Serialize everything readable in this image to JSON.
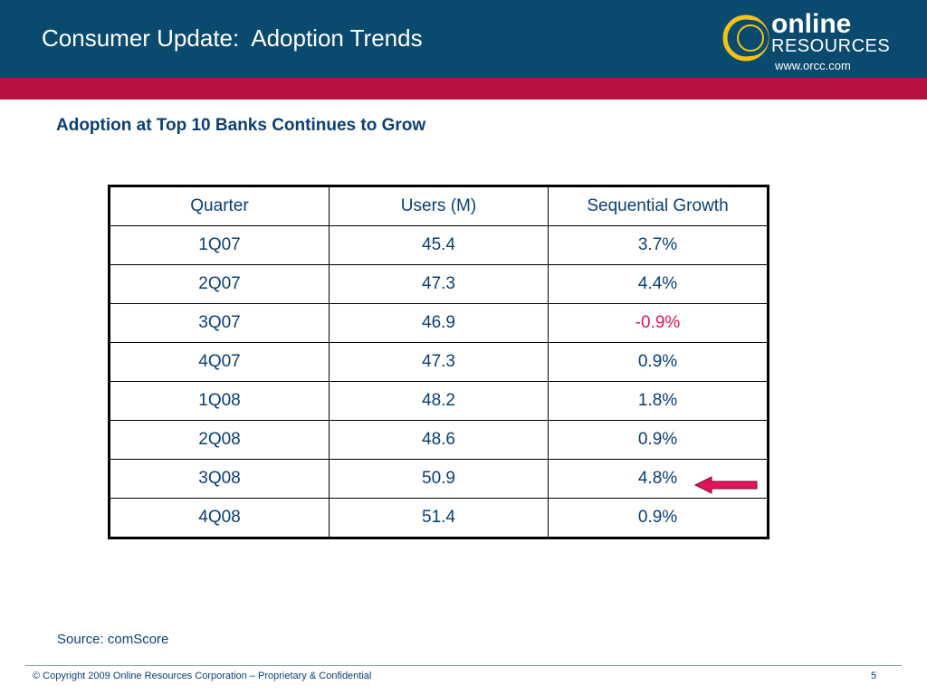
{
  "header": {
    "title": "Consumer Update:  Adoption Trends",
    "logo_word_1": "online",
    "logo_word_2": "RESOURCES",
    "logo_url": "www.orcc.com"
  },
  "colors": {
    "header_bg": "#0b4a6f",
    "accent_stripe": "#b5123f",
    "text_blue": "#0b3f73",
    "negative_value": "#e3125b",
    "arrow": "#e3125b",
    "logo_ring": "#f2c418"
  },
  "subtitle": "Adoption at Top 10 Banks Continues to Grow",
  "table": {
    "headers": [
      "Quarter",
      "Users (M)",
      "Sequential Growth"
    ],
    "rows": [
      [
        "1Q07",
        "45.4",
        "3.7%"
      ],
      [
        "2Q07",
        "47.3",
        "4.4%"
      ],
      [
        "3Q07",
        "46.9",
        "-0.9%"
      ],
      [
        "4Q07",
        "47.3",
        "0.9%"
      ],
      [
        "1Q08",
        "48.2",
        "1.8%"
      ],
      [
        "2Q08",
        "48.6",
        "0.9%"
      ],
      [
        "3Q08",
        "50.9",
        "4.8%"
      ],
      [
        "4Q08",
        "51.4",
        "0.9%"
      ]
    ]
  },
  "source": "Source: comScore",
  "footer": {
    "copyright": "© Copyright 2009 Online Resources Corporation – Proprietary & Confidential",
    "page_number": "5"
  },
  "icons": {
    "logo": "ring-logo-icon",
    "pointer": "left-arrow-icon"
  }
}
